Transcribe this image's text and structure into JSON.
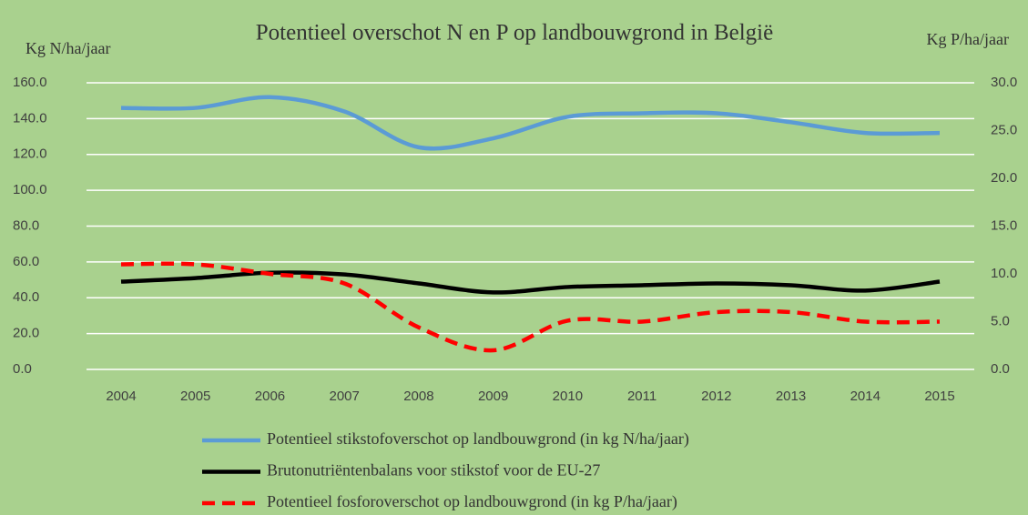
{
  "chart_data": {
    "type": "line",
    "title": "Potentieel overschot N en P op landbouwgrond in België",
    "y_label": "Kg N/ha/jaar",
    "y2_label": "Kg P/ha/jaar",
    "categories": [
      "2004",
      "2005",
      "2006",
      "2007",
      "2008",
      "2009",
      "2010",
      "2011",
      "2012",
      "2013",
      "2014",
      "2015"
    ],
    "series": [
      {
        "name": "Potentieel stikstofoverschot op landbouwgrond (in kg N/ha/jaar)",
        "color": "#5b9bd5",
        "dash": false,
        "values": [
          146,
          146,
          152,
          144,
          124,
          129,
          141,
          143,
          143,
          138,
          132,
          132
        ]
      },
      {
        "name": "Brutonutriëntenbalans voor stikstof voor de EU-27",
        "color": "#000000",
        "dash": false,
        "values": [
          49,
          51,
          54,
          53,
          48,
          43,
          46,
          47,
          48,
          47,
          44,
          49
        ]
      },
      {
        "name": "Potentieel fosforoverschot op landbouwgrond (in kg P/ha/jaar)",
        "color": "#ff0000",
        "dash": true,
        "axis": "y2",
        "values": [
          11.0,
          11.0,
          10.0,
          9.0,
          4.4,
          2.0,
          5.1,
          5.0,
          6.0,
          6.0,
          5.0,
          5.0
        ]
      }
    ],
    "ylim": [
      0,
      160
    ],
    "yticks": [
      {
        "value": 0,
        "label": "0.0"
      },
      {
        "value": 20,
        "label": "20.0"
      },
      {
        "value": 40,
        "label": "40.0"
      },
      {
        "value": 60,
        "label": "60.0"
      },
      {
        "value": 80,
        "label": "80.0"
      },
      {
        "value": 100,
        "label": "100.0"
      },
      {
        "value": 120,
        "label": "120.0"
      },
      {
        "value": 140,
        "label": "140.0"
      },
      {
        "value": 160,
        "label": "160.0"
      }
    ],
    "y2lim": [
      0,
      30
    ],
    "y2ticks": [
      {
        "value": 0,
        "label": "0.0"
      },
      {
        "value": 5,
        "label": "5.0"
      },
      {
        "value": 10,
        "label": "10.0"
      },
      {
        "value": 15,
        "label": "15.0"
      },
      {
        "value": 20,
        "label": "20.0"
      },
      {
        "value": 25,
        "label": "25.0"
      },
      {
        "value": 30,
        "label": "30.0"
      }
    ],
    "grid": true
  }
}
